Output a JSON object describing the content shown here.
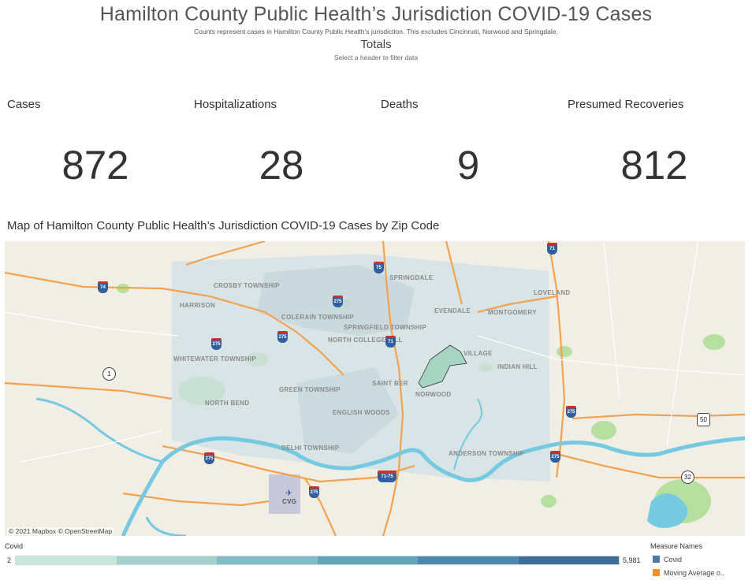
{
  "header": {
    "title": "Hamilton County Public Health’s Jurisdiction COVID-19 Cases",
    "subtitle": "Counts represent cases in Hamilton County Public Health’s jurisdiction. This excludes Cincinnati, Norwood and Springdale.",
    "totals_label": "Totals",
    "filter_hint": "Select a header to filter data"
  },
  "metrics": [
    {
      "label": "Cases",
      "value": "872"
    },
    {
      "label": "Hospitalizations",
      "value": "28"
    },
    {
      "label": "Deaths",
      "value": "9"
    },
    {
      "label": "Presumed Recoveries",
      "value": "812"
    }
  ],
  "map": {
    "title": "Map of Hamilton County Public Health’s Jurisdiction COVID-19 Cases by Zip Code",
    "attribution": "© 2021 Mapbox © OpenStreetMap",
    "places": [
      "CROSBY TOWNSHIP",
      "SPRINGDALE",
      "LOVELAND",
      "HARRISON",
      "EVENDALE",
      "MONTGOMERY",
      "COLERAIN TOWNSHIP",
      "SPRINGFIELD TOWNSHIP",
      "NORTH COLLEGE HILL",
      "VILLAGE",
      "WHITEWATER TOWNSHIP",
      "INDIAN HILL",
      "SAINT BER",
      "NORWOOD",
      "GREEN TOWNSHIP",
      "NORTH BEND",
      "ENGLISH WOODS",
      "DELHI TOWNSHIP",
      "ANDERSON TOWNSHIP",
      "CVG"
    ],
    "route_shields": [
      "74",
      "275",
      "275",
      "71",
      "75",
      "71-75",
      "275",
      "275",
      "275",
      "71",
      "275",
      "275",
      "50",
      "32",
      "1"
    ],
    "colors": {
      "land": "#f1eee6",
      "overlay": "#cfe0e6",
      "river": "#75c9e0",
      "highway": "#f3a24f",
      "park": "#b7df9f",
      "highlight": "#a6d5c4"
    }
  },
  "legend": {
    "label": "Covid",
    "min": "2",
    "max": "5,981",
    "colors": [
      "#c6e8dd",
      "#a3d2cf",
      "#82bcc6",
      "#64a4ba",
      "#4d89aa",
      "#3f6e98"
    ]
  },
  "measure_names": {
    "title": "Measure Names",
    "items": [
      {
        "label": "Covid",
        "color": "#4e79a7"
      },
      {
        "label": "Moving Average o..",
        "color": "#f28e2b"
      }
    ]
  }
}
